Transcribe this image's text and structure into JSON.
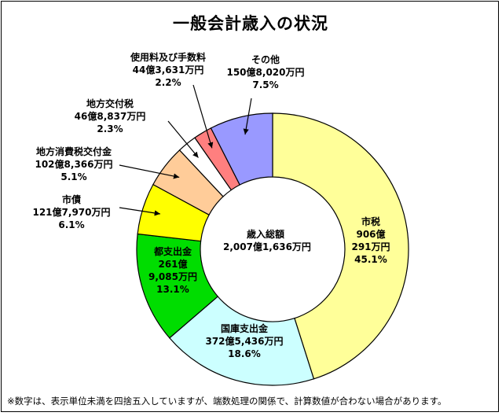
{
  "chart_data": {
    "type": "pie",
    "title": "一般会計歳入の状況",
    "center_label": {
      "line1": "歳入総額",
      "line2": "2,007億1,636万円"
    },
    "footnote": "※数字は、表示単位未満を四捨五入していますが、端数処理の関係で、計算数値が合わない場合があります。",
    "slices": [
      {
        "name": "市税",
        "amount_line1": "906億",
        "amount_line2": "291万円",
        "percent": "45.1%",
        "value": 45.1,
        "color": "#ffff99"
      },
      {
        "name": "国庫支出金",
        "amount": "372億5,436万円",
        "percent": "18.6%",
        "value": 18.6,
        "color": "#ccffff"
      },
      {
        "name": "都支出金",
        "amount_line1": "261億",
        "amount_line2": "9,085万円",
        "percent": "13.1%",
        "value": 13.1,
        "color": "#00dd00"
      },
      {
        "name": "市債",
        "amount": "121億7,970万円",
        "percent": "6.1%",
        "value": 6.1,
        "color": "#ffff00"
      },
      {
        "name": "地方消費税交付金",
        "amount": "102億8,366万円",
        "percent": "5.1%",
        "value": 5.1,
        "color": "#ffcc99"
      },
      {
        "name": "地方交付税",
        "amount": "46億8,837万円",
        "percent": "2.3%",
        "value": 2.3,
        "color": "#ffffff"
      },
      {
        "name": "使用料及び手数料",
        "amount": "44億3,631万円",
        "percent": "2.2%",
        "value": 2.2,
        "color": "#ff7f7f"
      },
      {
        "name": "その他",
        "amount": "150億8,020万円",
        "percent": "7.5%",
        "value": 7.5,
        "color": "#9999ff"
      }
    ]
  }
}
